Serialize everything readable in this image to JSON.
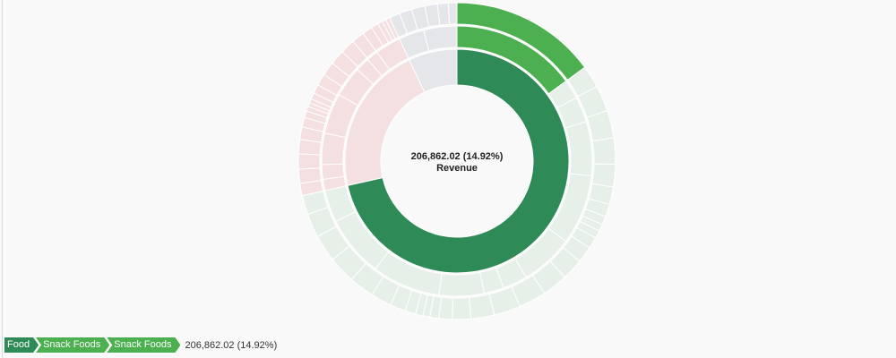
{
  "chart_data": {
    "type": "sunburst",
    "center": {
      "value": "206,862.02 (14.92%)",
      "measure": "Revenue"
    },
    "rings": [
      {
        "level": 1,
        "segments": [
          {
            "name": "Food",
            "share": 0.715,
            "color": "#2e8b57",
            "highlight": true
          },
          {
            "name": "",
            "share": 0.215,
            "color": "#f4e0e0"
          },
          {
            "name": "",
            "share": 0.07,
            "color": "#e4e6ea"
          }
        ]
      },
      {
        "level": 2,
        "segments": [
          {
            "name": "Snack Foods",
            "share": 0.1492,
            "color": "#4caf50",
            "highlight": true
          },
          {
            "name": "",
            "share": 0.5658,
            "color": "#e6f0e8",
            "parts": 11
          },
          {
            "name": "",
            "share": 0.215,
            "color": "#f4e0e0",
            "parts": 8
          },
          {
            "name": "",
            "share": 0.07,
            "color": "#e4e6ea",
            "parts": 2
          }
        ]
      },
      {
        "level": 3,
        "segments": [
          {
            "name": "Snack Foods",
            "share": 0.1492,
            "color": "#4caf50",
            "highlight": true
          },
          {
            "name": "",
            "share": 0.5658,
            "color": "#e6f0e8",
            "parts": 30
          },
          {
            "name": "",
            "share": 0.215,
            "color": "#f4e0e0",
            "parts": 22
          },
          {
            "name": "",
            "share": 0.07,
            "color": "#e4e6ea",
            "parts": 6
          }
        ]
      }
    ]
  },
  "breadcrumb": {
    "items": [
      "Food",
      "Snack Foods",
      "Snack Foods"
    ],
    "value": "206,862.02 (14.92%)"
  }
}
